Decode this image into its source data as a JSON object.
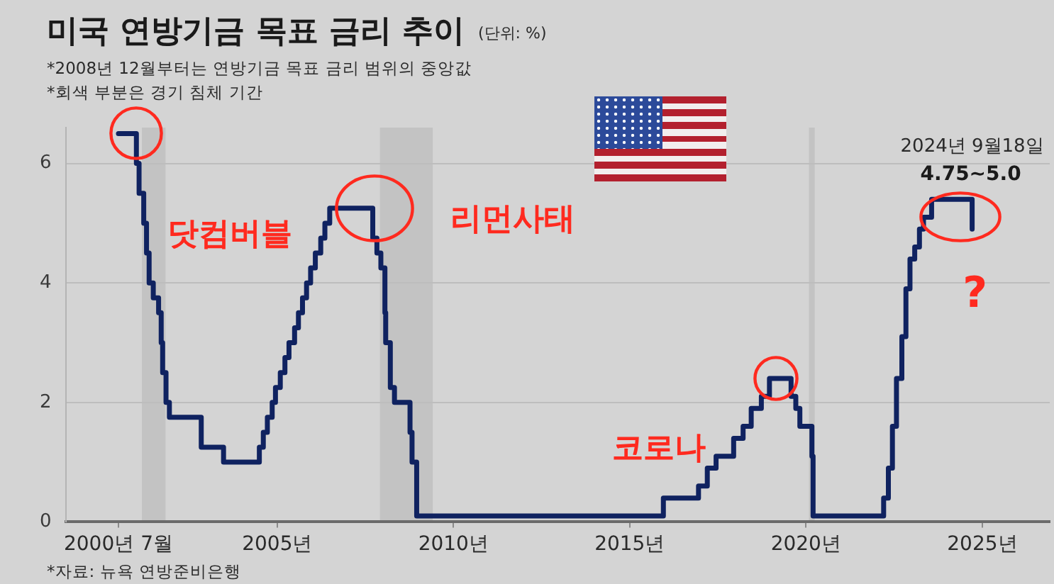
{
  "chart_data": {
    "type": "step",
    "title": "미국 연방기금 목표 금리 추이",
    "subtitle": "(단위: %)",
    "x": [
      "2000-07-01",
      "2001-01-03",
      "2001-01-31",
      "2001-03-20",
      "2001-04-18",
      "2001-05-15",
      "2001-06-27",
      "2001-08-21",
      "2001-09-17",
      "2001-10-02",
      "2001-11-06",
      "2001-12-11",
      "2002-11-06",
      "2003-06-25",
      "2004-06-30",
      "2004-08-10",
      "2004-09-21",
      "2004-11-10",
      "2004-12-14",
      "2005-02-02",
      "2005-03-22",
      "2005-05-03",
      "2005-06-30",
      "2005-08-09",
      "2005-09-20",
      "2005-11-01",
      "2005-12-13",
      "2006-01-31",
      "2006-03-28",
      "2006-05-10",
      "2006-06-29",
      "2007-09-18",
      "2007-10-31",
      "2007-12-11",
      "2008-01-22",
      "2008-01-30",
      "2008-03-18",
      "2008-04-30",
      "2008-10-08",
      "2008-10-29",
      "2008-12-16",
      "2015-12-16",
      "2016-12-14",
      "2017-03-15",
      "2017-06-14",
      "2017-12-13",
      "2018-03-21",
      "2018-06-13",
      "2018-09-26",
      "2018-12-19",
      "2019-07-31",
      "2019-09-18",
      "2019-10-30",
      "2020-03-03",
      "2020-03-15",
      "2022-03-16",
      "2022-05-04",
      "2022-06-15",
      "2022-07-27",
      "2022-09-21",
      "2022-11-02",
      "2022-12-14",
      "2023-02-01",
      "2023-03-22",
      "2023-05-03",
      "2023-07-26",
      "2024-09-18"
    ],
    "series": [
      {
        "color": "#0f2260",
        "values": [
          6.5,
          6.0,
          5.5,
          5.0,
          4.5,
          4.0,
          3.75,
          3.5,
          3.0,
          2.5,
          2.0,
          1.75,
          1.25,
          1.0,
          1.25,
          1.5,
          1.75,
          2.0,
          2.25,
          2.5,
          2.75,
          3.0,
          3.25,
          3.5,
          3.75,
          4.0,
          4.25,
          4.5,
          4.75,
          5.0,
          5.25,
          4.75,
          4.5,
          4.25,
          3.5,
          3.0,
          2.25,
          2.0,
          1.5,
          1.0,
          0.1,
          0.4,
          0.6,
          0.9,
          1.1,
          1.4,
          1.6,
          1.9,
          2.1,
          2.4,
          2.1,
          1.9,
          1.6,
          1.1,
          0.1,
          0.4,
          0.9,
          1.6,
          2.4,
          3.1,
          3.9,
          4.4,
          4.6,
          4.9,
          5.1,
          5.4,
          4.9
        ]
      }
    ],
    "xlim": [
      "1999-01",
      "2026-12"
    ],
    "xticks": [
      {
        "value": "2000-07",
        "label": "2000년 7월"
      },
      {
        "value": "2005",
        "label": "2005년"
      },
      {
        "value": "2010",
        "label": "2010년"
      },
      {
        "value": "2015",
        "label": "2015년"
      },
      {
        "value": "2020",
        "label": "2020년"
      },
      {
        "value": "2025",
        "label": "2025년"
      }
    ],
    "ylim": [
      0,
      6.6
    ],
    "yticks": [
      0,
      2,
      4,
      6
    ],
    "grid": "y",
    "bands": [
      {
        "axis": "x",
        "from": "2001-03",
        "to": "2001-11",
        "color": "#c3c3c3"
      },
      {
        "axis": "x",
        "from": "2007-12",
        "to": "2009-06",
        "color": "#c3c3c3"
      },
      {
        "axis": "x",
        "from": "2020-02",
        "to": "2020-04",
        "color": "#c3c3c3"
      }
    ],
    "annotations": [
      "*2008년 12월부터는 연방기금 목표 금리 범위의 중앙값",
      "*회색 부분은 경기 침체 기간",
      {
        "text": "2024년 9월18일",
        "x": "2024-09-18",
        "y": 5.4
      },
      {
        "text": "4.75~5.0",
        "x": "2024-09-18",
        "y": 5.4
      },
      {
        "text": "닷컴버블",
        "x": "2001-01",
        "y": 6.5
      },
      {
        "text": "리먼사태",
        "x": "2007-09",
        "y": 5.25
      },
      {
        "text": "코로나",
        "x": "2019-03",
        "y": 2.4
      },
      {
        "text": "?",
        "x": "2024-09-18",
        "y": 4.9
      },
      "*자료: 뉴욕 연방준비은행"
    ]
  }
}
